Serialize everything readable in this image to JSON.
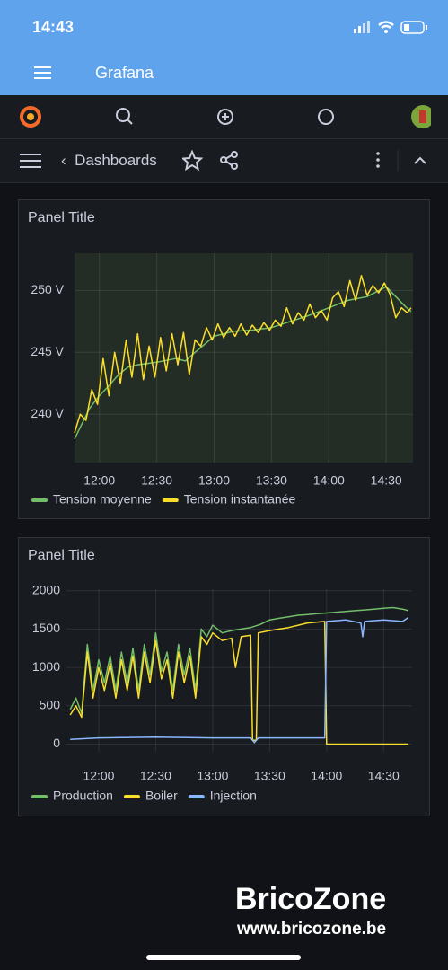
{
  "status_bar": {
    "time": "14:43"
  },
  "app_bar": {
    "title": "Grafana"
  },
  "breadcrumb": {
    "label": "Dashboards"
  },
  "watermark": {
    "brand": "BricoZone",
    "url": "www.bricozone.be"
  },
  "chart_data": [
    {
      "type": "line",
      "title": "Panel Title",
      "xlim": [
        "11:47",
        "14:44"
      ],
      "xticks": [
        "12:00",
        "12:30",
        "13:00",
        "13:30",
        "14:00",
        "14:30"
      ],
      "ylim": [
        236.1,
        253
      ],
      "yticks": [
        {
          "value": 240,
          "label": "240 V"
        },
        {
          "value": 245,
          "label": "245 V"
        },
        {
          "value": 250,
          "label": "250 V"
        }
      ],
      "grid": true,
      "plot_background": "#242d25",
      "series": [
        {
          "name": "Tension moyenne",
          "color": "#73bf69",
          "x": [
            "11:47",
            "11:55",
            "12:00",
            "12:05",
            "12:10",
            "12:15",
            "12:20",
            "12:30",
            "12:40",
            "12:45",
            "12:50",
            "13:00",
            "13:10",
            "13:20",
            "13:30",
            "13:40",
            "13:50",
            "14:00",
            "14:10",
            "14:20",
            "14:30",
            "14:40",
            "14:43"
          ],
          "values": [
            238,
            240.5,
            241.5,
            242.3,
            243.2,
            243.8,
            244,
            244.2,
            244.5,
            244.3,
            245,
            246.3,
            246.7,
            246.8,
            247,
            247.5,
            248,
            248.6,
            249.2,
            249.5,
            250.3,
            248.7,
            248.3
          ]
        },
        {
          "name": "Tension instantanée",
          "color": "#fade2a",
          "x": [
            "11:47",
            "11:50",
            "11:53",
            "11:56",
            "11:59",
            "12:02",
            "12:05",
            "12:08",
            "12:11",
            "12:14",
            "12:17",
            "12:20",
            "12:23",
            "12:26",
            "12:29",
            "12:32",
            "12:35",
            "12:38",
            "12:41",
            "12:44",
            "12:47",
            "12:50",
            "12:53",
            "12:56",
            "12:59",
            "13:02",
            "13:05",
            "13:08",
            "13:11",
            "13:14",
            "13:17",
            "13:20",
            "13:23",
            "13:26",
            "13:29",
            "13:32",
            "13:35",
            "13:38",
            "13:41",
            "13:44",
            "13:47",
            "13:50",
            "13:53",
            "13:56",
            "13:59",
            "14:02",
            "14:05",
            "14:08",
            "14:11",
            "14:14",
            "14:17",
            "14:20",
            "14:23",
            "14:26",
            "14:29",
            "14:32",
            "14:35",
            "14:38",
            "14:41",
            "14:43"
          ],
          "values": [
            238.5,
            240,
            239.5,
            242,
            240.8,
            244.5,
            241.5,
            245,
            242.5,
            246,
            243,
            246.5,
            242.8,
            245.5,
            243,
            246.2,
            243.5,
            246.5,
            244,
            246.6,
            243.2,
            246,
            245.5,
            247,
            246,
            247.3,
            246.2,
            247,
            246.3,
            247.3,
            246.4,
            247.2,
            246.6,
            247.4,
            246.8,
            247.6,
            247.1,
            248.6,
            247.3,
            248.2,
            247.6,
            248.9,
            247.8,
            248.4,
            247.6,
            249.4,
            249.9,
            248.7,
            250.8,
            249.2,
            251.2,
            249.6,
            250.4,
            249.8,
            250.6,
            249.7,
            247.8,
            248.6,
            248.2,
            248.6
          ]
        }
      ]
    },
    {
      "type": "line",
      "title": "Panel Title",
      "xlim": [
        "11:43",
        "14:45"
      ],
      "xticks": [
        "12:00",
        "12:30",
        "13:00",
        "13:30",
        "14:00",
        "14:30"
      ],
      "ylim": [
        -100,
        2020
      ],
      "yticks": [
        0,
        500,
        1000,
        1500,
        2000
      ],
      "grid": true,
      "series": [
        {
          "name": "Production",
          "color": "#73bf69",
          "x": [
            "11:45",
            "11:48",
            "11:51",
            "11:54",
            "11:57",
            "12:00",
            "12:03",
            "12:06",
            "12:09",
            "12:12",
            "12:15",
            "12:18",
            "12:21",
            "12:24",
            "12:27",
            "12:30",
            "12:33",
            "12:36",
            "12:39",
            "12:42",
            "12:45",
            "12:48",
            "12:51",
            "12:54",
            "12:57",
            "13:00",
            "13:05",
            "13:10",
            "13:15",
            "13:20",
            "13:25",
            "13:30",
            "13:35",
            "13:40",
            "13:45",
            "13:50",
            "13:55",
            "14:00",
            "14:05",
            "14:10",
            "14:15",
            "14:20",
            "14:25",
            "14:30",
            "14:35",
            "14:40",
            "14:43"
          ],
          "values": [
            450,
            600,
            400,
            1300,
            700,
            1100,
            800,
            1150,
            700,
            1200,
            800,
            1250,
            700,
            1300,
            900,
            1450,
            950,
            1200,
            700,
            1300,
            900,
            1250,
            700,
            1500,
            1400,
            1550,
            1450,
            1480,
            1500,
            1520,
            1560,
            1620,
            1640,
            1660,
            1680,
            1690,
            1700,
            1710,
            1720,
            1730,
            1740,
            1750,
            1760,
            1770,
            1780,
            1760,
            1740
          ]
        },
        {
          "name": "Boiler",
          "color": "#fade2a",
          "x": [
            "11:45",
            "11:48",
            "11:51",
            "11:54",
            "11:57",
            "12:00",
            "12:03",
            "12:06",
            "12:09",
            "12:12",
            "12:15",
            "12:18",
            "12:21",
            "12:24",
            "12:27",
            "12:30",
            "12:33",
            "12:36",
            "12:39",
            "12:42",
            "12:45",
            "12:48",
            "12:51",
            "12:54",
            "12:57",
            "13:00",
            "13:05",
            "13:10",
            "13:12",
            "13:15",
            "13:20",
            "13:21",
            "13:23",
            "13:24",
            "13:30",
            "13:40",
            "13:50",
            "13:59",
            "14:00",
            "14:10",
            "14:43"
          ],
          "values": [
            380,
            500,
            350,
            1200,
            600,
            1000,
            700,
            1050,
            600,
            1100,
            700,
            1150,
            600,
            1200,
            800,
            1350,
            850,
            1100,
            600,
            1200,
            800,
            1150,
            600,
            1400,
            1300,
            1450,
            1350,
            1380,
            1000,
            1400,
            1420,
            50,
            50,
            1450,
            1480,
            1520,
            1580,
            1600,
            0,
            0,
            0
          ]
        },
        {
          "name": "Injection",
          "color": "#8ab8ff",
          "x": [
            "11:45",
            "12:00",
            "12:30",
            "13:00",
            "13:20",
            "13:22",
            "13:24",
            "13:50",
            "13:59",
            "14:00",
            "14:10",
            "14:18",
            "14:19",
            "14:20",
            "14:30",
            "14:40",
            "14:43"
          ],
          "values": [
            60,
            80,
            90,
            80,
            80,
            20,
            80,
            80,
            80,
            1600,
            1620,
            1580,
            1400,
            1600,
            1620,
            1600,
            1650
          ]
        }
      ]
    }
  ]
}
